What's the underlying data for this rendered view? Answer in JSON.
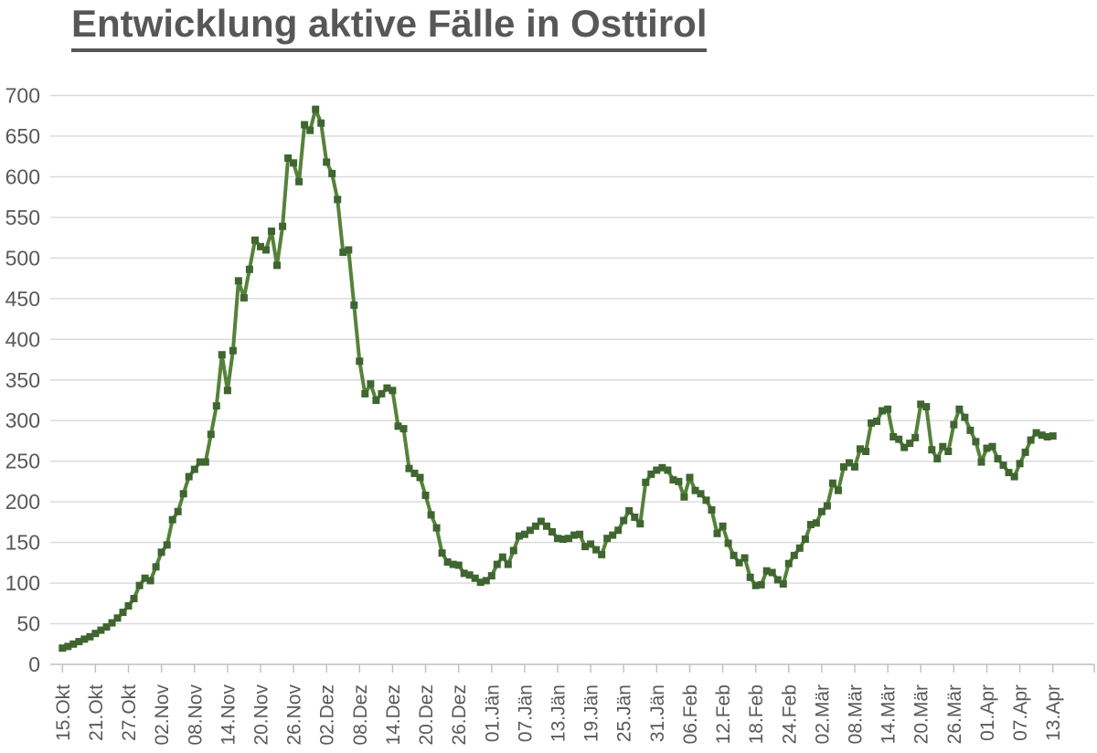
{
  "chart_data": {
    "type": "line",
    "title": "Entwicklung aktive Fälle in Osttirol",
    "xlabel": "",
    "ylabel": "",
    "ylim": [
      0,
      700
    ],
    "ytick_step": 50,
    "ytick_labels": [
      "0",
      "50",
      "100",
      "150",
      "200",
      "250",
      "300",
      "350",
      "400",
      "450",
      "500",
      "550",
      "600",
      "650",
      "700"
    ],
    "grid": "horizontal",
    "legend": "none",
    "marker": "square",
    "x_tick_labels": [
      "15.Okt",
      "21.Okt",
      "27.Okt",
      "02.Nov",
      "08.Nov",
      "14.Nov",
      "20.Nov",
      "26.Nov",
      "02.Dez",
      "08.Dez",
      "14.Dez",
      "20.Dez",
      "26.Dez",
      "01.Jän",
      "07.Jän",
      "13.Jän",
      "19.Jän",
      "25.Jän",
      "31.Jän",
      "06.Feb",
      "12.Feb",
      "18.Feb",
      "24.Feb",
      "02.Mär",
      "08.Mär",
      "14.Mär",
      "20.Mär",
      "26.Mär",
      "01.Apr",
      "07.Apr",
      "13.Apr"
    ],
    "x_label_interval_days": 6,
    "values": [
      20,
      22,
      25,
      28,
      31,
      34,
      38,
      42,
      46,
      51,
      57,
      64,
      72,
      81,
      97,
      106,
      103,
      120,
      138,
      147,
      178,
      188,
      210,
      231,
      240,
      249,
      249,
      283,
      318,
      381,
      337,
      386,
      472,
      451,
      486,
      522,
      514,
      510,
      533,
      491,
      539,
      623,
      617,
      594,
      664,
      657,
      683,
      666,
      618,
      604,
      572,
      507,
      510,
      442,
      373,
      333,
      345,
      325,
      333,
      340,
      337,
      293,
      290,
      241,
      235,
      230,
      208,
      184,
      168,
      137,
      126,
      123,
      122,
      112,
      110,
      106,
      101,
      103,
      109,
      123,
      132,
      123,
      140,
      158,
      160,
      165,
      170,
      176,
      170,
      163,
      155,
      154,
      155,
      159,
      160,
      145,
      148,
      141,
      135,
      155,
      159,
      165,
      177,
      189,
      181,
      173,
      224,
      234,
      239,
      242,
      239,
      227,
      225,
      206,
      230,
      214,
      210,
      202,
      190,
      161,
      170,
      149,
      134,
      125,
      131,
      107,
      97,
      98,
      115,
      113,
      104,
      99,
      124,
      134,
      143,
      154,
      172,
      174,
      188,
      195,
      223,
      214,
      243,
      248,
      243,
      265,
      262,
      297,
      299,
      312,
      314,
      280,
      277,
      267,
      272,
      279,
      320,
      317,
      264,
      253,
      268,
      262,
      295,
      314,
      304,
      288,
      274,
      249,
      266,
      268,
      253,
      245,
      236,
      231,
      247,
      261,
      276,
      285,
      282,
      280,
      281
    ],
    "colors": {
      "line": "#55823a",
      "marker": "#3f6530",
      "gridline": "#d9d9d9",
      "axis": "#bfbfbf",
      "tick": "#bfbfbf",
      "axis_label": "#595959",
      "title": "#575757"
    }
  }
}
